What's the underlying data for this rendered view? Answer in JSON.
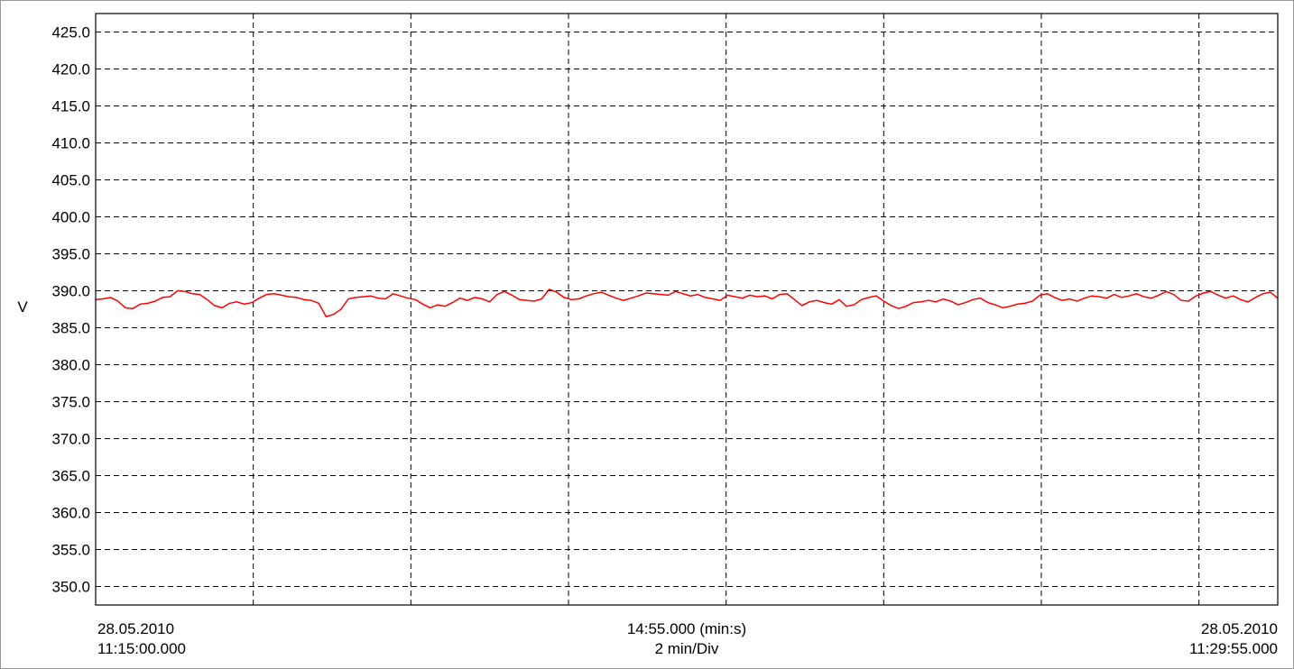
{
  "chart_data": {
    "type": "line",
    "ylabel": "V",
    "ylim": [
      347.5,
      427.5
    ],
    "yticks": [
      "350.0",
      "355.0",
      "360.0",
      "365.0",
      "370.0",
      "375.0",
      "380.0",
      "385.0",
      "390.0",
      "395.0",
      "400.0",
      "405.0",
      "410.0",
      "415.0",
      "420.0",
      "425.0"
    ],
    "grid": true,
    "x_divisions": 7.5,
    "x_start": {
      "date": "28.05.2010",
      "time": "11:15:00.000"
    },
    "x_end": {
      "date": "28.05.2010",
      "time": "11:29:55.000"
    },
    "x_span": "14:55.000 (min:s)",
    "x_scale": "2 min/Div",
    "series": [
      {
        "color": "#ff0000",
        "values": [
          388.8,
          388.9,
          389.1,
          388.6,
          387.7,
          387.6,
          388.2,
          388.3,
          388.6,
          389.1,
          389.2,
          390.0,
          389.9,
          389.6,
          389.5,
          388.8,
          388.0,
          387.7,
          388.3,
          388.5,
          388.2,
          388.4,
          389.0,
          389.5,
          389.6,
          389.4,
          389.2,
          389.1,
          388.8,
          388.7,
          388.3,
          386.5,
          386.8,
          387.5,
          388.9,
          389.1,
          389.2,
          389.3,
          389.0,
          388.9,
          389.6,
          389.3,
          389.0,
          388.8,
          388.2,
          387.7,
          388.1,
          387.9,
          388.4,
          389.0,
          388.7,
          389.1,
          388.9,
          388.5,
          389.5,
          389.9,
          389.4,
          388.8,
          388.7,
          388.6,
          388.9,
          390.2,
          389.8,
          389.1,
          388.8,
          388.9,
          389.3,
          389.6,
          389.8,
          389.4,
          389.0,
          388.7,
          389.0,
          389.3,
          389.7,
          389.6,
          389.5,
          389.4,
          389.9,
          389.6,
          389.3,
          389.5,
          389.1,
          388.9,
          388.7,
          389.4,
          389.2,
          389.0,
          389.4,
          389.2,
          389.3,
          388.9,
          389.5,
          389.6,
          388.8,
          388.0,
          388.5,
          388.7,
          388.4,
          388.2,
          388.8,
          387.9,
          388.1,
          388.8,
          389.1,
          389.3,
          388.6,
          388.0,
          387.6,
          387.9,
          388.4,
          388.5,
          388.7,
          388.5,
          388.9,
          388.6,
          388.1,
          388.4,
          388.8,
          389.0,
          388.4,
          388.1,
          387.7,
          387.9,
          388.2,
          388.3,
          388.6,
          389.4,
          389.6,
          389.1,
          388.7,
          388.9,
          388.6,
          389.0,
          389.3,
          389.2,
          389.0,
          389.5,
          389.1,
          389.3,
          389.6,
          389.2,
          389.0,
          389.4,
          389.9,
          389.5,
          388.7,
          388.6,
          389.3,
          389.7,
          389.9,
          389.4,
          389.0,
          389.3,
          388.8,
          388.5,
          389.1,
          389.6,
          389.8,
          389.0
        ]
      }
    ]
  }
}
